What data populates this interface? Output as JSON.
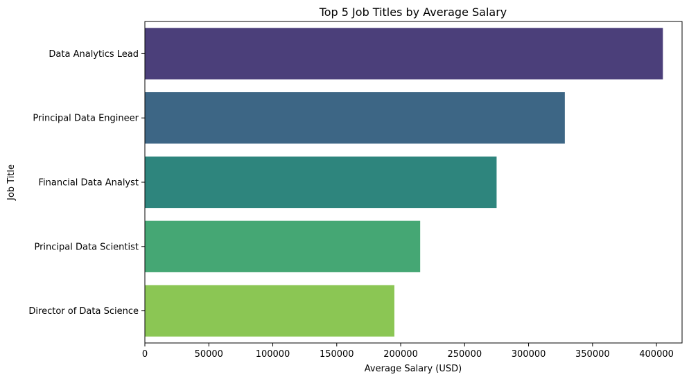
{
  "chart_data": {
    "type": "bar",
    "orientation": "horizontal",
    "title": "Top 5 Job Titles by Average Salary",
    "xlabel": "Average Salary (USD)",
    "ylabel": "Job Title",
    "categories": [
      "Data Analytics Lead",
      "Principal Data Engineer",
      "Financial Data Analyst",
      "Principal Data Scientist",
      "Director of Data Science"
    ],
    "values": [
      405000,
      328333,
      275000,
      215242,
      195074
    ],
    "colors": [
      "#4b3f7a",
      "#3d6685",
      "#2e857d",
      "#45a774",
      "#8bc654"
    ],
    "xlim": [
      0,
      420000
    ],
    "xticks": [
      0,
      50000,
      100000,
      150000,
      200000,
      250000,
      300000,
      350000,
      400000
    ],
    "xtick_labels": [
      "0",
      "50000",
      "100000",
      "150000",
      "200000",
      "250000",
      "300000",
      "350000",
      "400000"
    ],
    "grid": false,
    "legend": "none"
  }
}
